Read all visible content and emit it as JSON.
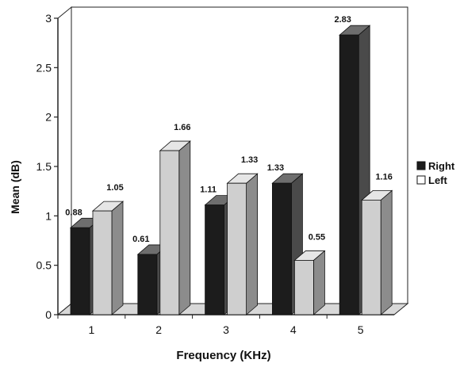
{
  "chart_data": {
    "type": "bar",
    "categories": [
      "1",
      "2",
      "3",
      "4",
      "5"
    ],
    "series": [
      {
        "name": "Right",
        "values": [
          0.88,
          0.61,
          1.11,
          1.33,
          2.83
        ],
        "data_labels": [
          "0.88",
          "0.61",
          "1.11",
          "1.33",
          "2.83"
        ]
      },
      {
        "name": "Left",
        "values": [
          1.05,
          1.66,
          1.33,
          0.55,
          1.16
        ],
        "data_labels": [
          "1.05",
          "1.66",
          "1.33",
          "0.55",
          "1.16"
        ]
      }
    ],
    "xlabel": "Frequency (KHz)",
    "ylabel": "Mean (dB)",
    "ylim": [
      0,
      3
    ],
    "yticks": [
      "0",
      "0.5",
      "1",
      "1.5",
      "2",
      "2.5",
      "3"
    ],
    "grid": false,
    "legend": "right",
    "style": "3d-bar"
  },
  "colors": {
    "right_front": "#1c1c1c",
    "right_side": "#4a4a4a",
    "right_top": "#6e6e6e",
    "left_front": "#cfcfcf",
    "left_side": "#8c8c8c",
    "left_top": "#e6e6e6",
    "wall": "#ffffff",
    "floor": "#d8d8d8",
    "axis": "#222222"
  }
}
